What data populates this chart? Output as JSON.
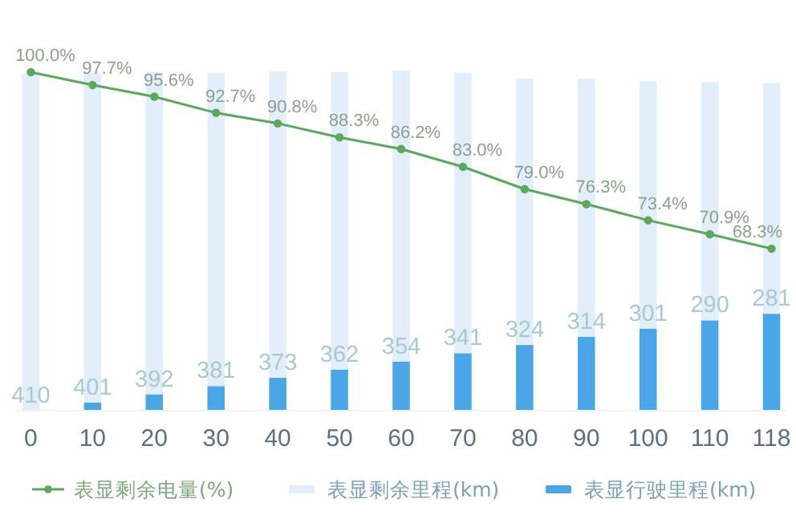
{
  "chart_data": {
    "type": "bar",
    "stacked": true,
    "categories": [
      "0",
      "10",
      "20",
      "30",
      "40",
      "50",
      "60",
      "70",
      "80",
      "90",
      "100",
      "110",
      "118"
    ],
    "series": [
      {
        "name": "表显剩余电量(%)",
        "type": "line",
        "axis": "y2",
        "color": "#5ba85c",
        "marker": "circle",
        "values": [
          100.0,
          97.7,
          95.6,
          92.7,
          90.8,
          88.3,
          86.2,
          83.0,
          79.0,
          76.3,
          73.4,
          70.9,
          68.3
        ],
        "value_labels": [
          "100.0%",
          "97.7%",
          "95.6%",
          "92.7%",
          "90.8%",
          "88.3%",
          "86.2%",
          "83.0%",
          "79.0%",
          "76.3%",
          "73.4%",
          "70.9%",
          "68.3%"
        ]
      },
      {
        "name": "表显行驶里程(km)",
        "color": "#4aa6e6",
        "values": [
          0,
          10,
          20,
          30,
          40,
          50,
          60,
          70,
          80,
          90,
          100,
          110,
          118
        ]
      },
      {
        "name": "表显剩余里程(km)",
        "color": "#e2eefa",
        "values": [
          410,
          401,
          392,
          381,
          373,
          362,
          354,
          341,
          324,
          314,
          301,
          290,
          281
        ],
        "value_labels": [
          "410",
          "401",
          "392",
          "381",
          "373",
          "362",
          "354",
          "341",
          "324",
          "314",
          "301",
          "290",
          "281"
        ]
      }
    ],
    "legend": "bottom"
  }
}
